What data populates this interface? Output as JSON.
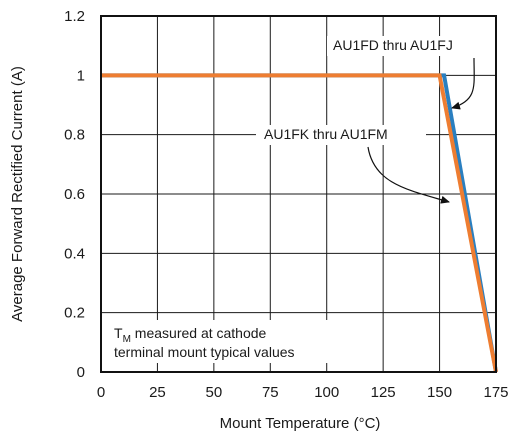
{
  "chart_data": {
    "type": "line",
    "title": "",
    "xlabel": "Mount Temperature (°C)",
    "ylabel": "Average Forward Rectified Current (A)",
    "xlim": [
      0,
      175
    ],
    "ylim": [
      0,
      1.2
    ],
    "x_ticks": [
      0,
      25,
      50,
      75,
      100,
      125,
      150,
      175
    ],
    "y_ticks": [
      0,
      0.2,
      0.4,
      0.6,
      0.8,
      1,
      1.2
    ],
    "x_tick_labels": [
      "0",
      "25",
      "50",
      "75",
      "100",
      "125",
      "150",
      "175"
    ],
    "y_tick_labels": [
      "0",
      "0.2",
      "0.4",
      "0.6",
      "0.8",
      "1",
      "1.2"
    ],
    "grid": true,
    "series": [
      {
        "name": "AU1FD thru AU1FJ",
        "color": "#2a7fc0",
        "x": [
          0,
          152,
          175
        ],
        "y": [
          1,
          1,
          0
        ]
      },
      {
        "name": "AU1FK thru AU1FM",
        "color": "#ee7d31",
        "x": [
          0,
          150,
          175
        ],
        "y": [
          1,
          1,
          0
        ]
      }
    ],
    "annotations": [
      {
        "text": "AU1FD thru AU1FJ",
        "series": 0,
        "arrow_to": [
          155,
          0.88
        ]
      },
      {
        "text": "AU1FK thru AU1FM",
        "series": 1,
        "arrow_to": [
          153,
          0.57
        ]
      }
    ],
    "note": {
      "prefix": "T",
      "subscript": "M",
      "line1": " measured at cathode",
      "line2": "terminal mount typical values"
    }
  }
}
